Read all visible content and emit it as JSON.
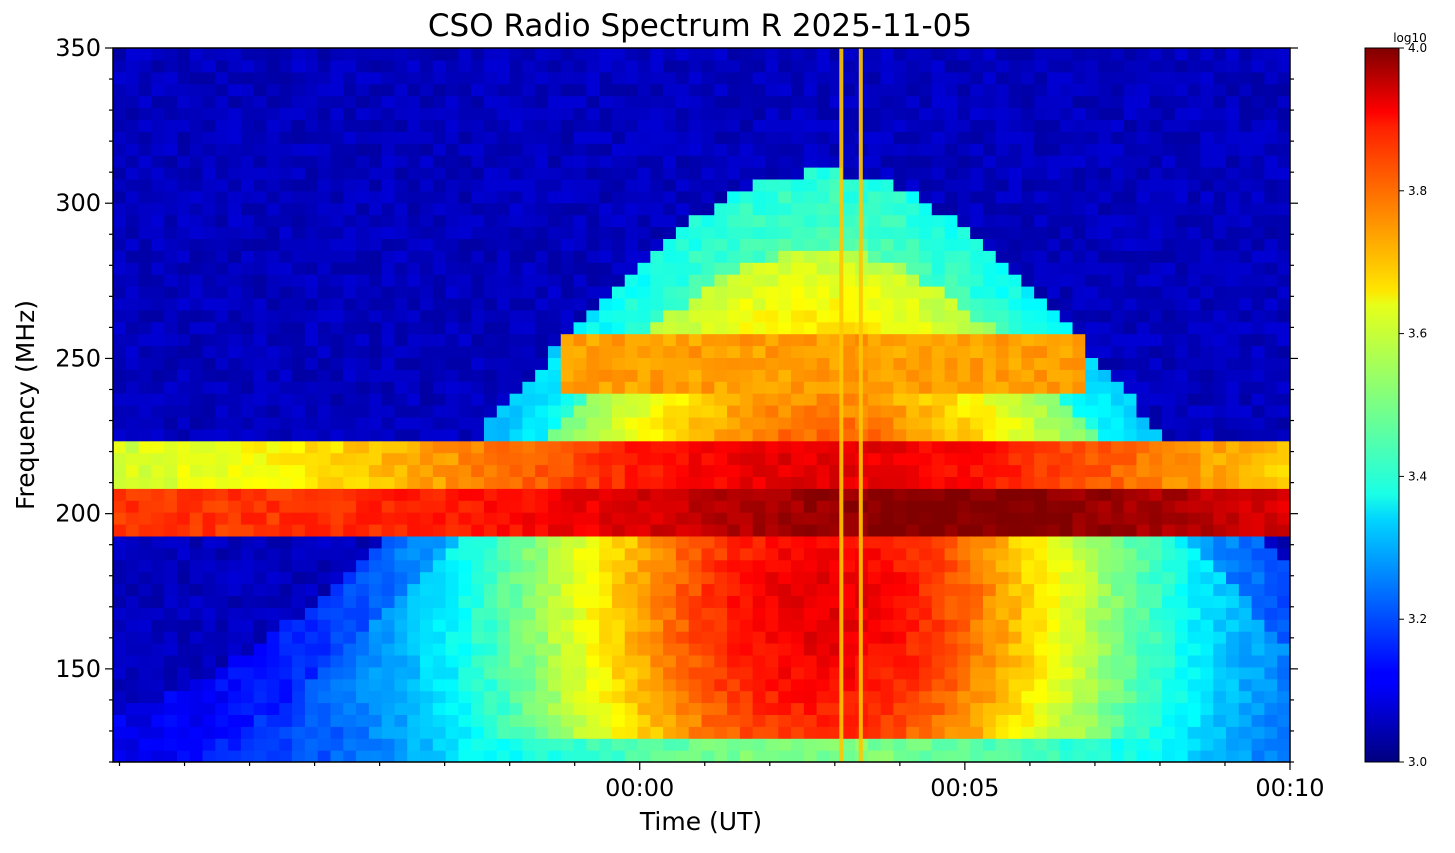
{
  "chart_data": {
    "type": "heatmap",
    "title": "CSO Radio Spectrum R 2025-11-05",
    "xlabel": "Time (UT)",
    "ylabel": "Frequency (MHz)",
    "xlim_minutes": [
      -8.1,
      10.0
    ],
    "ylim": [
      120,
      350
    ],
    "x_ticks": [
      {
        "value": 0,
        "label": "00:00"
      },
      {
        "value": 5,
        "label": "00:05"
      },
      {
        "value": 10,
        "label": "00:10"
      }
    ],
    "y_ticks": [
      {
        "value": 150,
        "label": "150"
      },
      {
        "value": 200,
        "label": "200"
      },
      {
        "value": 250,
        "label": "250"
      },
      {
        "value": 300,
        "label": "300"
      },
      {
        "value": 350,
        "label": "350"
      }
    ],
    "colorbar": {
      "label": "log10",
      "colormap": "jet",
      "range": [
        3.0,
        4.0
      ],
      "ticks": [
        {
          "value": 3.0,
          "label": "3.0"
        },
        {
          "value": 3.2,
          "label": "3.2"
        },
        {
          "value": 3.4,
          "label": "3.4"
        },
        {
          "value": 3.6,
          "label": "3.6"
        },
        {
          "value": 3.8,
          "label": "3.8"
        },
        {
          "value": 4.0,
          "label": "4.0"
        }
      ]
    },
    "features": {
      "burst_center_minutes": 2.8,
      "burst_peak_freq_mhz": 170,
      "high_band_mhz": [
        192,
        208
      ],
      "mid_band_mhz": [
        208,
        223
      ],
      "vertical_spike_minutes": [
        3.1,
        3.4
      ]
    }
  }
}
